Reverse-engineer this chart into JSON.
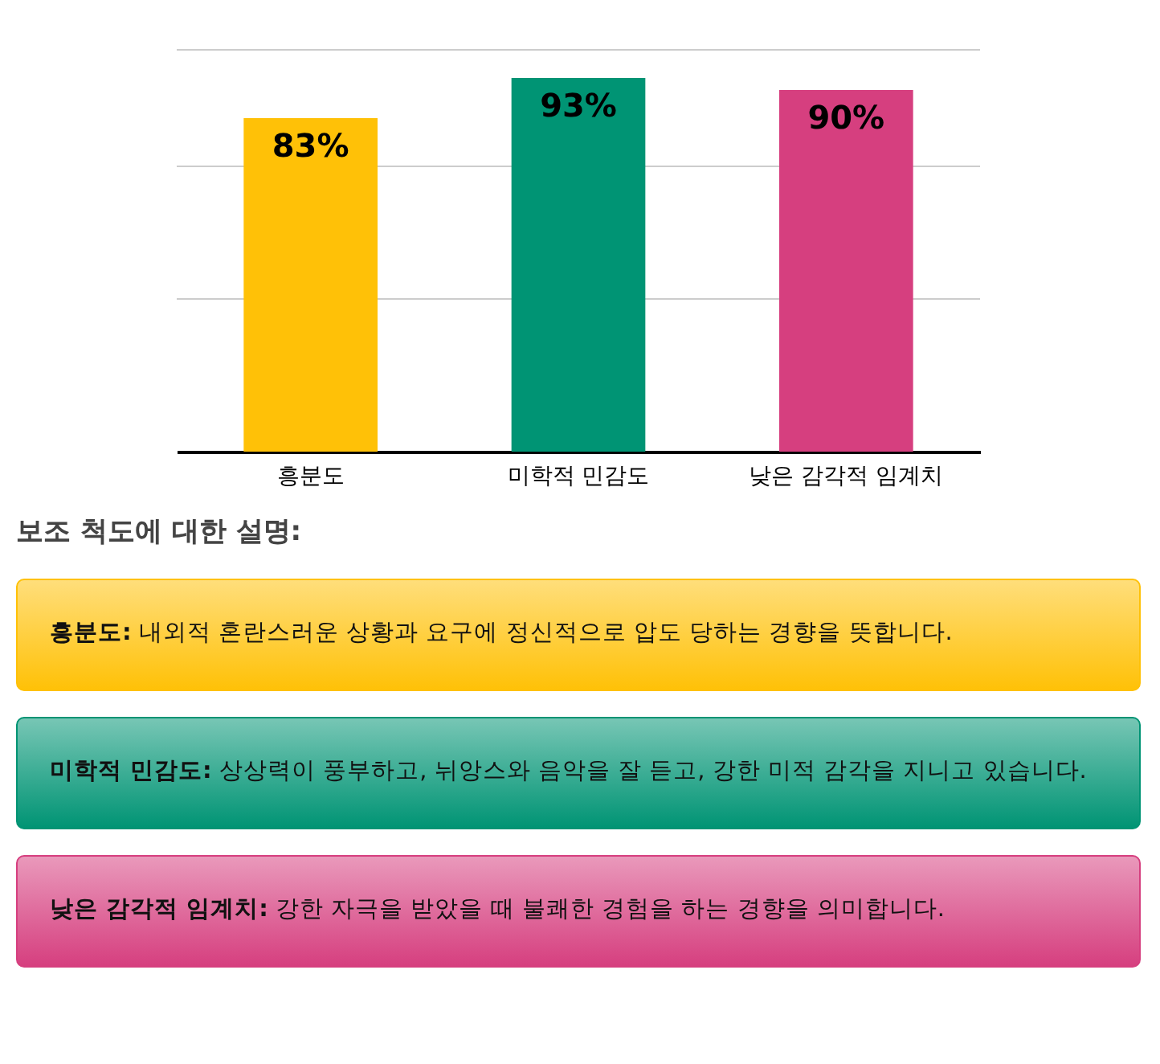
{
  "chart_data": {
    "type": "bar",
    "categories": [
      "흥분도",
      "미학적 민감도",
      "낮은 감각적 임계치"
    ],
    "values": [
      83,
      93,
      90
    ],
    "colors": [
      "#ffc107",
      "#009474",
      "#d63f7f"
    ],
    "value_labels": [
      "83%",
      "93%",
      "90%"
    ],
    "ylim": [
      0,
      100
    ],
    "ref_lines": [
      {
        "axis": "y",
        "value": 38,
        "color": "#cccccc"
      },
      {
        "axis": "y",
        "value": 71,
        "color": "#cccccc"
      },
      {
        "axis": "y",
        "value": 100,
        "color": "#cccccc"
      }
    ],
    "tick_labels": "x",
    "legend": false,
    "annotations": [
      "보조 척도에 대한 설명:",
      "흥분도: 내외적 혼란스러운 상황과 요구에 정신적으로 압도 당하는 경향을 뜻합니다.",
      "미학적 민감도: 상상력이 풍부하고, 뉘앙스와 음악을 잘 듣고, 강한 미적 감각을 지니고 있습니다.",
      "낮은 감각적 임계치: 강한 자극을 받았을 때 불쾌한 경험을 하는 경향을 의미합니다."
    ]
  }
}
